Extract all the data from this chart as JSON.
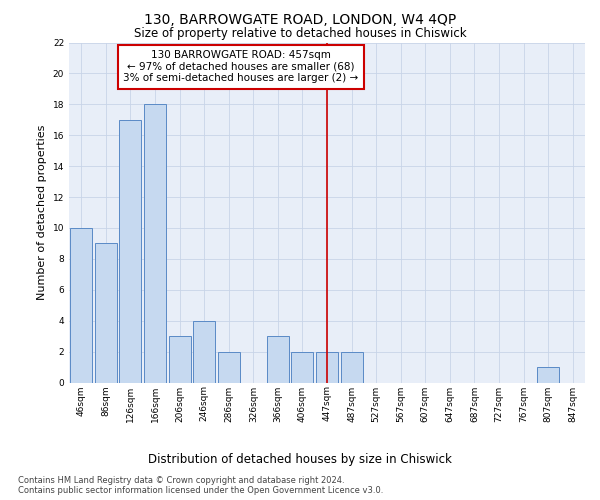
{
  "title": "130, BARROWGATE ROAD, LONDON, W4 4QP",
  "subtitle": "Size of property relative to detached houses in Chiswick",
  "xlabel": "Distribution of detached houses by size in Chiswick",
  "ylabel": "Number of detached properties",
  "bar_labels": [
    "46sqm",
    "86sqm",
    "126sqm",
    "166sqm",
    "206sqm",
    "246sqm",
    "286sqm",
    "326sqm",
    "366sqm",
    "406sqm",
    "447sqm",
    "487sqm",
    "527sqm",
    "567sqm",
    "607sqm",
    "647sqm",
    "687sqm",
    "727sqm",
    "767sqm",
    "807sqm",
    "847sqm"
  ],
  "bar_values": [
    10,
    9,
    17,
    18,
    3,
    4,
    2,
    0,
    3,
    2,
    2,
    2,
    0,
    0,
    0,
    0,
    0,
    0,
    0,
    1,
    0
  ],
  "bar_color": "#c6d9f0",
  "bar_edge_color": "#5a8ac6",
  "vline_x_idx": 10,
  "vline_color": "#cc0000",
  "annotation_text": "130 BARROWGATE ROAD: 457sqm\n← 97% of detached houses are smaller (68)\n3% of semi-detached houses are larger (2) →",
  "annotation_box_color": "#ffffff",
  "annotation_box_edge_color": "#cc0000",
  "ylim": [
    0,
    22
  ],
  "yticks": [
    0,
    2,
    4,
    6,
    8,
    10,
    12,
    14,
    16,
    18,
    20,
    22
  ],
  "grid_color": "#c8d4e8",
  "background_color": "#e8eef8",
  "footer_line1": "Contains HM Land Registry data © Crown copyright and database right 2024.",
  "footer_line2": "Contains public sector information licensed under the Open Government Licence v3.0.",
  "title_fontsize": 10,
  "subtitle_fontsize": 8.5,
  "xlabel_fontsize": 8.5,
  "ylabel_fontsize": 8,
  "tick_fontsize": 6.5,
  "annotation_fontsize": 7.5,
  "footer_fontsize": 6.0
}
